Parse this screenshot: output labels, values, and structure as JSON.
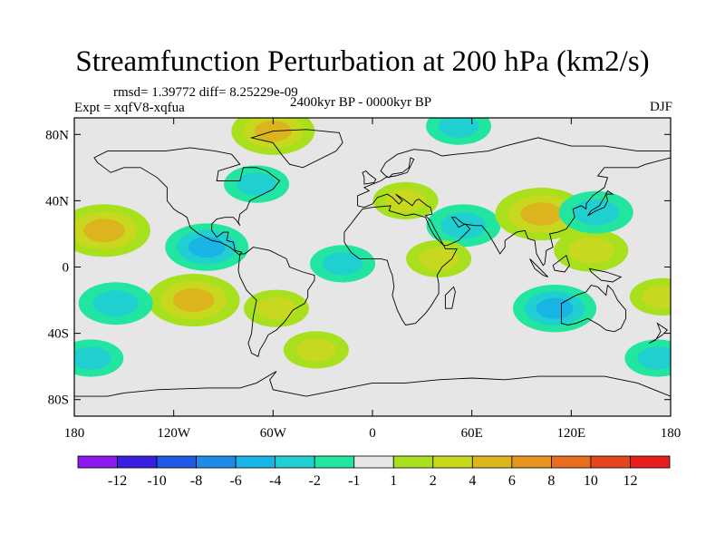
{
  "header": {
    "title": "Streamfunction Perturbation at 200 hPa (km2/s)",
    "stats": "rmsd= 1.39772 diff= 8.25229e-09",
    "experiment": "Expt = xqfV8-xqfua",
    "period": "2400kyr BP - 0000kyr BP",
    "season": "DJF"
  },
  "chart_data": {
    "type": "heatmap",
    "title": "Streamfunction Perturbation at 200 hPa (km2/s)",
    "xlabel": "",
    "ylabel": "",
    "xlim": [
      -180,
      180
    ],
    "ylim": [
      -90,
      90
    ],
    "x_ticks": [
      {
        "value": -180,
        "label": "180"
      },
      {
        "value": -120,
        "label": "120W"
      },
      {
        "value": -60,
        "label": "60W"
      },
      {
        "value": 0,
        "label": "0"
      },
      {
        "value": 60,
        "label": "60E"
      },
      {
        "value": 120,
        "label": "120E"
      },
      {
        "value": 180,
        "label": "180"
      }
    ],
    "y_ticks": [
      {
        "value": 80,
        "label": "80N"
      },
      {
        "value": 40,
        "label": "40N"
      },
      {
        "value": 0,
        "label": "0"
      },
      {
        "value": -40,
        "label": "40S"
      },
      {
        "value": -80,
        "label": "80S"
      }
    ],
    "colorbar": {
      "labels": [
        "-12",
        "-10",
        "-8",
        "-6",
        "-4",
        "-2",
        "-1",
        "1",
        "2",
        "4",
        "6",
        "8",
        "10",
        "12"
      ],
      "colors": [
        "#8b19f0",
        "#3a1ee0",
        "#1f5ae6",
        "#1e8ce6",
        "#19b4e6",
        "#20d0d0",
        "#22e6a0",
        "#e6e6e6",
        "#a8e01e",
        "#c8d81e",
        "#dcb41e",
        "#e6961e",
        "#e66e1e",
        "#e6461e",
        "#e61e1e"
      ]
    },
    "anomalies": [
      {
        "lon": -162,
        "lat": 22,
        "value": 5
      },
      {
        "lon": -100,
        "lat": 12,
        "value": -4
      },
      {
        "lon": -108,
        "lat": -20,
        "value": 5
      },
      {
        "lon": -155,
        "lat": -22,
        "value": -3
      },
      {
        "lon": -170,
        "lat": -55,
        "value": -2
      },
      {
        "lon": -60,
        "lat": 82,
        "value": 4
      },
      {
        "lon": -70,
        "lat": 50,
        "value": -2
      },
      {
        "lon": -58,
        "lat": -25,
        "value": 2
      },
      {
        "lon": -34,
        "lat": -50,
        "value": 2
      },
      {
        "lon": -18,
        "lat": 2,
        "value": -2
      },
      {
        "lon": 20,
        "lat": 40,
        "value": 2
      },
      {
        "lon": 52,
        "lat": 85,
        "value": -2
      },
      {
        "lon": 55,
        "lat": 25,
        "value": -3
      },
      {
        "lon": 40,
        "lat": 5,
        "value": 2
      },
      {
        "lon": 102,
        "lat": 32,
        "value": 5
      },
      {
        "lon": 132,
        "lat": 10,
        "value": 3
      },
      {
        "lon": 135,
        "lat": 33,
        "value": -3
      },
      {
        "lon": 110,
        "lat": -25,
        "value": -4
      },
      {
        "lon": 172,
        "lat": -55,
        "value": -2
      },
      {
        "lon": 175,
        "lat": -18,
        "value": 2
      }
    ]
  }
}
